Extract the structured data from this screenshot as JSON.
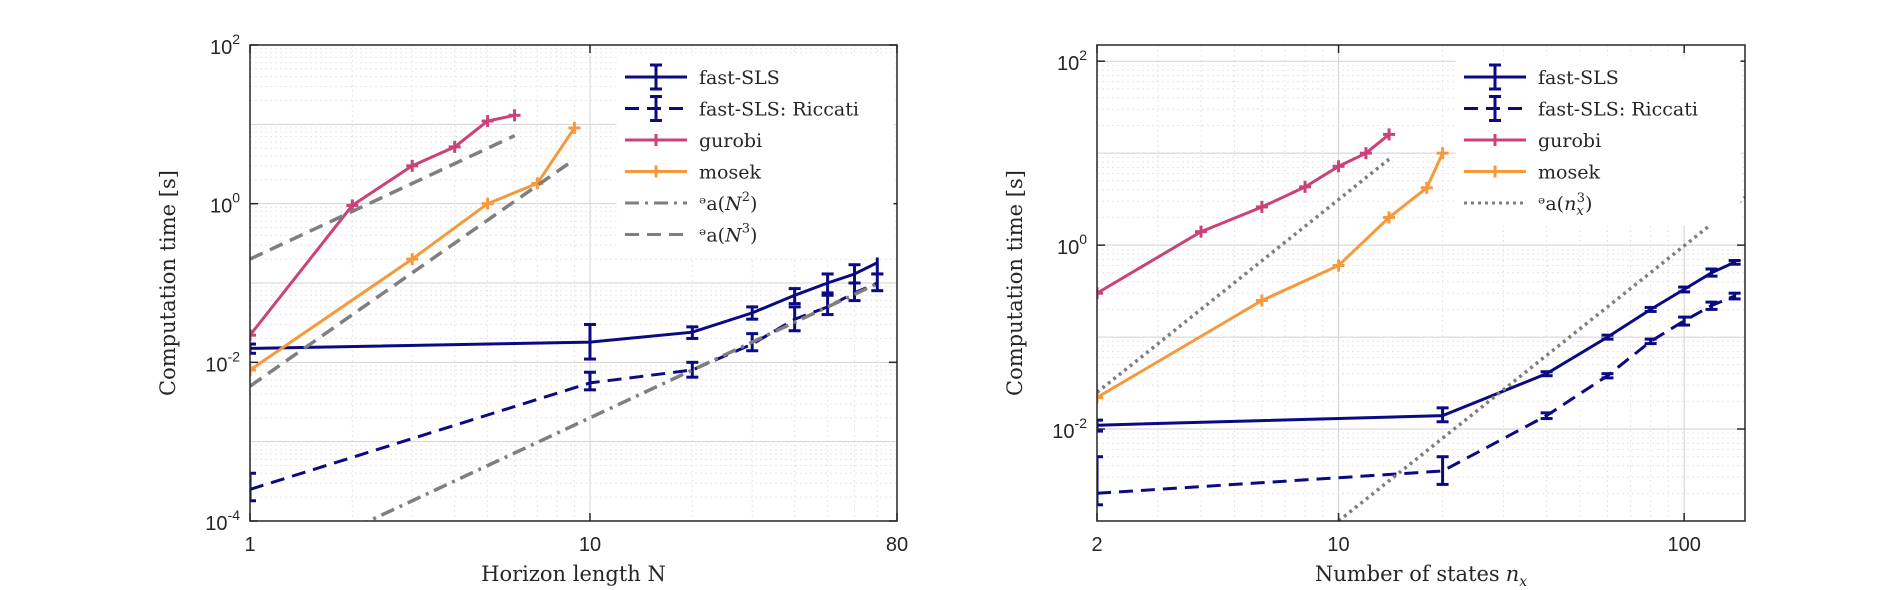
{
  "chart_data": [
    {
      "type": "line",
      "title": "",
      "xlabel": "Horizon length N",
      "ylabel": "Computation time [s]",
      "xscale": "log",
      "yscale": "log",
      "xlim": [
        1,
        80
      ],
      "ylim": [
        0.0001,
        100
      ],
      "grid": true,
      "legend": "top-right",
      "xticks": [
        {
          "value": 1,
          "label": "1"
        },
        {
          "value": 10,
          "label": "10"
        },
        {
          "value": 80,
          "label": "80"
        }
      ],
      "yticks": [
        {
          "value": 0.0001,
          "base": "10",
          "exp": "-4"
        },
        {
          "value": 0.01,
          "base": "10",
          "exp": "-2"
        },
        {
          "value": 1,
          "base": "10",
          "exp": "0"
        },
        {
          "value": 100,
          "base": "10",
          "exp": "2"
        }
      ],
      "series": [
        {
          "name": "fast-SLS",
          "color": "#0b0a82",
          "dash": "solid",
          "marker": "errorbar",
          "x": [
            1,
            10,
            20,
            30,
            40,
            50,
            60,
            70
          ],
          "y": [
            0.015,
            0.018,
            0.024,
            0.042,
            0.07,
            0.1,
            0.13,
            0.18
          ],
          "err_low": [
            0.013,
            0.011,
            0.02,
            0.035,
            0.055,
            0.075,
            0.1,
            0.13
          ],
          "err_high": [
            0.017,
            0.03,
            0.028,
            0.05,
            0.085,
            0.13,
            0.17,
            0.24
          ]
        },
        {
          "name": "fast-SLS: Riccati",
          "color": "#0b0a82",
          "dash": "dashed",
          "marker": "errorbar",
          "x": [
            1,
            10,
            20,
            30,
            40,
            50,
            60,
            70
          ],
          "y": [
            0.00025,
            0.0055,
            0.008,
            0.017,
            0.035,
            0.05,
            0.075,
            0.1
          ],
          "err_low": [
            0.00018,
            0.0045,
            0.0065,
            0.014,
            0.025,
            0.04,
            0.06,
            0.08
          ],
          "err_high": [
            0.0004,
            0.0075,
            0.01,
            0.023,
            0.05,
            0.07,
            0.1,
            0.13
          ]
        },
        {
          "name": "gurobi",
          "color": "#c9427a",
          "dash": "solid",
          "marker": "plus",
          "x": [
            1,
            2,
            3,
            4,
            5,
            6
          ],
          "y": [
            0.022,
            0.95,
            3.0,
            5.2,
            11,
            13
          ]
        },
        {
          "name": "mosek",
          "color": "#f59a3c",
          "dash": "solid",
          "marker": "plus",
          "x": [
            1,
            3,
            5,
            7,
            9
          ],
          "y": [
            0.008,
            0.2,
            1.0,
            1.8,
            9
          ]
        },
        {
          "name": "\\mathcal{O}(N^2)",
          "color": "#7f7f7f",
          "dash": "dashdot",
          "marker": "none",
          "x": [
            1,
            70
          ],
          "y": [
            2e-05,
            0.098
          ]
        },
        {
          "name": "\\mathcal{O}(N^3)",
          "color": "#7f7f7f",
          "dash": "dashed",
          "marker": "none",
          "x": [
            1,
            9
          ],
          "y": [
            0.005,
            3.6
          ]
        },
        {
          "name": "",
          "color": "#7f7f7f",
          "dash": "dashed",
          "marker": "none",
          "x": [
            1,
            6
          ],
          "y": [
            0.2,
            7.2
          ]
        }
      ],
      "legend_entries": [
        {
          "text": "fast-SLS",
          "color": "#0b0a82",
          "dash": "solid",
          "marker": "errorbar"
        },
        {
          "text": "fast-SLS: Riccati",
          "color": "#0b0a82",
          "dash": "dashed",
          "marker": "errorbar"
        },
        {
          "text": "gurobi",
          "color": "#c9427a",
          "dash": "solid",
          "marker": "plus"
        },
        {
          "text": "mosek",
          "color": "#f59a3c",
          "dash": "solid",
          "marker": "plus"
        },
        {
          "math": true,
          "pre": "ᵊa(",
          "var": "N",
          "sup": "2",
          "post": ")",
          "color": "#7f7f7f",
          "dash": "dashdot",
          "marker": "none"
        },
        {
          "math": true,
          "pre": "ᵊa(",
          "var": "N",
          "sup": "3",
          "post": ")",
          "color": "#7f7f7f",
          "dash": "dashed",
          "marker": "none"
        }
      ]
    },
    {
      "type": "line",
      "title": "",
      "xlabel": "Number of states",
      "xlabel_var": "n",
      "xlabel_sub": "x",
      "ylabel": "Computation time [s]",
      "xscale": "log",
      "yscale": "log",
      "xlim": [
        2,
        150
      ],
      "ylim": [
        0.001,
        150
      ],
      "grid": true,
      "legend": "top-right",
      "xticks": [
        {
          "value": 2,
          "label": "2"
        },
        {
          "value": 10,
          "label": "10"
        },
        {
          "value": 100,
          "label": "100"
        }
      ],
      "yticks": [
        {
          "value": 0.01,
          "base": "10",
          "exp": "-2"
        },
        {
          "value": 1,
          "base": "10",
          "exp": "0"
        },
        {
          "value": 100,
          "base": "10",
          "exp": "2"
        }
      ],
      "series": [
        {
          "name": "fast-SLS",
          "color": "#0b0a82",
          "dash": "solid",
          "marker": "errorbar",
          "x": [
            2,
            20,
            40,
            60,
            80,
            100,
            120,
            140
          ],
          "y": [
            0.011,
            0.014,
            0.04,
            0.1,
            0.2,
            0.33,
            0.5,
            0.65
          ],
          "err_low": [
            0.0095,
            0.012,
            0.038,
            0.095,
            0.19,
            0.31,
            0.46,
            0.62
          ],
          "err_high": [
            0.0125,
            0.017,
            0.042,
            0.105,
            0.21,
            0.35,
            0.55,
            0.68
          ]
        },
        {
          "name": "fast-SLS: Riccati",
          "color": "#0b0a82",
          "dash": "dashed",
          "marker": "errorbar",
          "x": [
            2,
            20,
            40,
            60,
            80,
            100,
            120,
            140
          ],
          "y": [
            0.002,
            0.0035,
            0.014,
            0.038,
            0.09,
            0.15,
            0.22,
            0.28
          ],
          "err_low": [
            0.0015,
            0.0025,
            0.013,
            0.036,
            0.085,
            0.135,
            0.2,
            0.26
          ],
          "err_high": [
            0.005,
            0.005,
            0.015,
            0.04,
            0.095,
            0.165,
            0.24,
            0.3
          ]
        },
        {
          "name": "gurobi",
          "color": "#c9427a",
          "dash": "solid",
          "marker": "plus",
          "x": [
            2,
            4,
            6,
            8,
            10,
            12,
            14
          ],
          "y": [
            0.3,
            1.4,
            2.6,
            4.3,
            7.2,
            10,
            16
          ]
        },
        {
          "name": "mosek",
          "color": "#f59a3c",
          "dash": "solid",
          "marker": "plus",
          "x": [
            2,
            6,
            10,
            14,
            18,
            20
          ],
          "y": [
            0.022,
            0.25,
            0.6,
            2.0,
            4.2,
            10
          ]
        },
        {
          "name": "\\mathcal{O}(n_x^3)",
          "color": "#7f7f7f",
          "dash": "dotted",
          "marker": "none",
          "x": [
            2,
            14
          ],
          "y": [
            0.025,
            8.6
          ]
        },
        {
          "name": "",
          "color": "#7f7f7f",
          "dash": "dotted",
          "marker": "none",
          "x": [
            10,
            150
          ],
          "y": [
            0.001,
            3.3
          ]
        }
      ],
      "legend_entries": [
        {
          "text": "fast-SLS",
          "color": "#0b0a82",
          "dash": "solid",
          "marker": "errorbar"
        },
        {
          "text": "fast-SLS: Riccati",
          "color": "#0b0a82",
          "dash": "dashed",
          "marker": "errorbar"
        },
        {
          "text": "gurobi",
          "color": "#c9427a",
          "dash": "solid",
          "marker": "plus"
        },
        {
          "text": "mosek",
          "color": "#f59a3c",
          "dash": "solid",
          "marker": "plus"
        },
        {
          "math": true,
          "pre": "ᵊa(",
          "var": "n",
          "sub": "x",
          "sup": "3",
          "post": ")",
          "color": "#7f7f7f",
          "dash": "dotted",
          "marker": "none"
        }
      ]
    }
  ]
}
